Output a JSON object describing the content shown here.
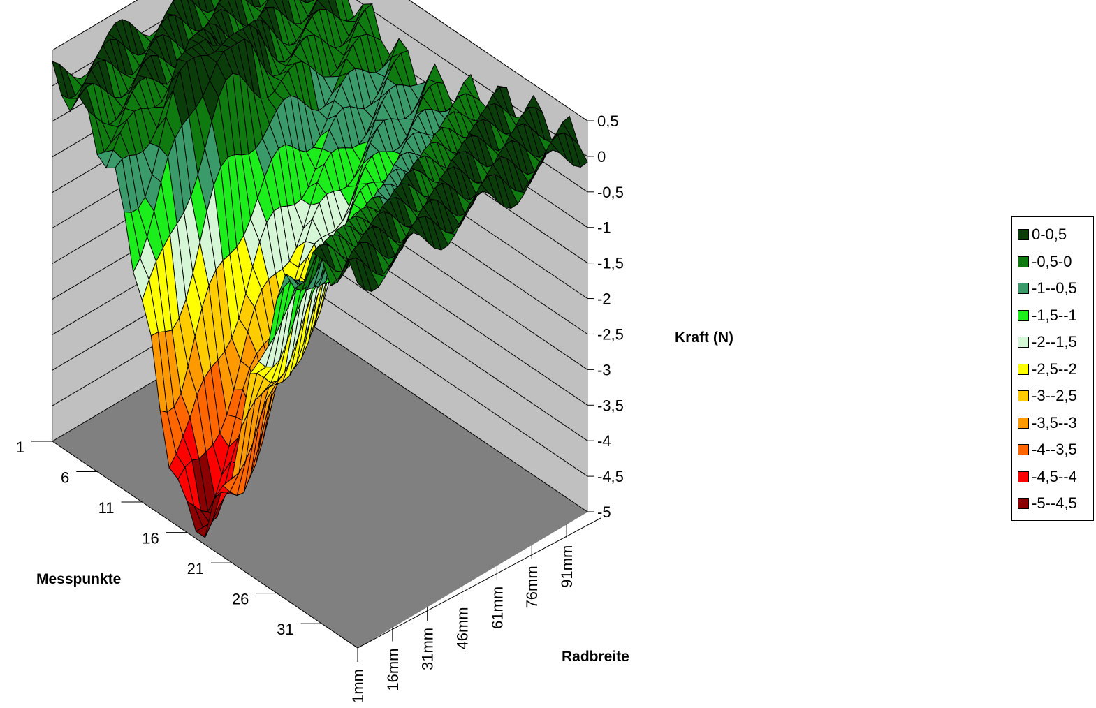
{
  "chart_data": {
    "type": "surface",
    "zlabel": "Kraft (N)",
    "xlabel": "Messpunkte",
    "ylabel": "Radbreite",
    "z_ticks": [
      "0,5",
      "0",
      "-0,5",
      "-1",
      "-1,5",
      "-2",
      "-2,5",
      "-3",
      "-3,5",
      "-4",
      "-4,5",
      "-5"
    ],
    "zlim": [
      -5,
      0.5
    ],
    "messpunkte_ticks": [
      "1",
      "6",
      "11",
      "16",
      "21",
      "26",
      "31"
    ],
    "radbreite_ticks": [
      "1mm",
      "16mm",
      "31mm",
      "46mm",
      "61mm",
      "76mm",
      "91mm"
    ],
    "legend": [
      {
        "label": "0-0,5",
        "color": "#0a3d0a"
      },
      {
        "label": "-0,5-0",
        "color": "#0f7a0f"
      },
      {
        "label": "-1--0,5",
        "color": "#3a9a6a"
      },
      {
        "label": "-1,5--1",
        "color": "#1cee1c"
      },
      {
        "label": "-2--1,5",
        "color": "#d6f7d6"
      },
      {
        "label": "-2,5--2",
        "color": "#ffff00"
      },
      {
        "label": "-3--2,5",
        "color": "#ffcc00"
      },
      {
        "label": "-3,5--3",
        "color": "#ff9900"
      },
      {
        "label": "-4--3,5",
        "color": "#ff6600"
      },
      {
        "label": "-4,5--4",
        "color": "#ff0000"
      },
      {
        "label": "-5--4,5",
        "color": "#8b0000"
      }
    ],
    "grid": true,
    "legend_position": "right",
    "min_value_approx": -4.9,
    "min_location_approx": {
      "messpunkt": 17,
      "radbreite_mm": 1
    }
  }
}
